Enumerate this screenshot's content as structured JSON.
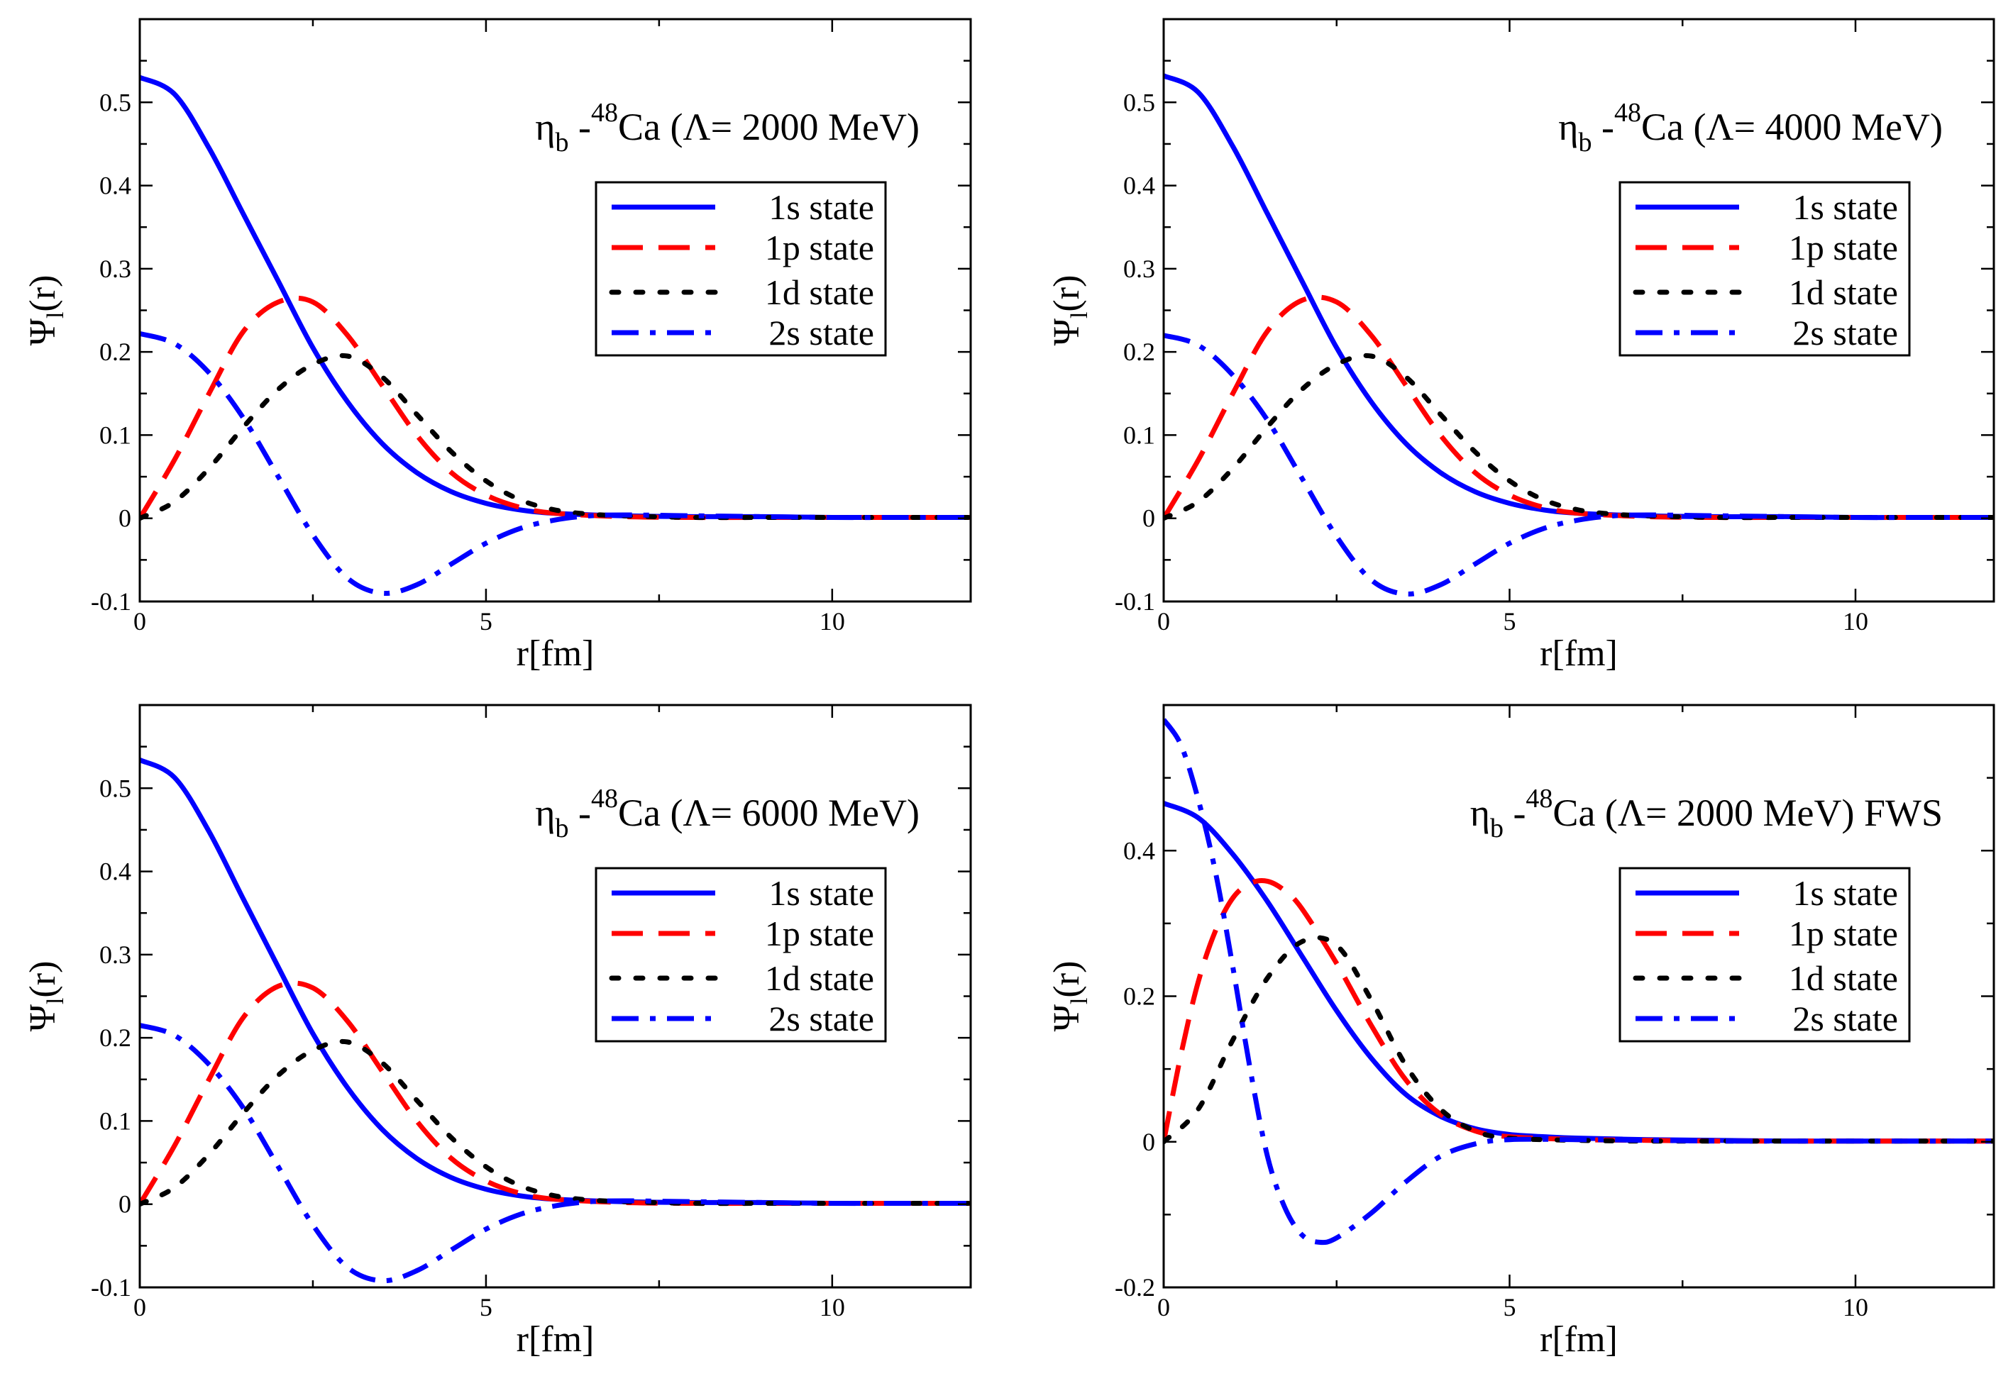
{
  "colors": {
    "s1": "#0000ff",
    "p1": "#ff0000",
    "d1": "#000000",
    "s2": "#0000ff"
  },
  "legend": [
    "1s state",
    "1p state",
    "1d state",
    "2s state"
  ],
  "xlabel": "r[fm]",
  "ylabel_main": "Ψ",
  "ylabel_sub": "l",
  "ylabel_tail": "(r)",
  "chart_data": [
    {
      "type": "line",
      "title_prefix": "η",
      "title_sub": "b",
      "title_sup": "48",
      "title_rest": "Ca (Λ= 2000 MeV)",
      "xlim": [
        0,
        12
      ],
      "ylim": [
        -0.1,
        0.6
      ],
      "xticks": [
        0,
        5,
        10
      ],
      "yticks": [
        -0.1,
        0,
        0.1,
        0.2,
        0.3,
        0.4,
        0.5
      ],
      "ytick_labels": [
        "-0.1",
        "0",
        "0.1",
        "0.2",
        "0.3",
        "0.4",
        "0.5"
      ],
      "series": [
        {
          "name": "1s state",
          "x": [
            0,
            0.5,
            1,
            1.5,
            2,
            2.5,
            3,
            3.5,
            4,
            4.5,
            5,
            5.5,
            6,
            7,
            8,
            9,
            10,
            11,
            12
          ],
          "y": [
            0.53,
            0.51,
            0.445,
            0.365,
            0.285,
            0.205,
            0.14,
            0.09,
            0.055,
            0.032,
            0.018,
            0.01,
            0.006,
            0.003,
            0.002,
            0.002,
            0.001,
            0.001,
            0.001
          ]
        },
        {
          "name": "1p state",
          "x": [
            0,
            0.5,
            1,
            1.5,
            2,
            2.5,
            3,
            3.5,
            4,
            4.5,
            5,
            5.5,
            6,
            7,
            8,
            9,
            10,
            11,
            12
          ],
          "y": [
            0,
            0.07,
            0.15,
            0.225,
            0.26,
            0.26,
            0.22,
            0.16,
            0.1,
            0.055,
            0.028,
            0.013,
            0.006,
            0.002,
            0.001,
            0.001,
            0.001,
            0.001,
            0.001
          ]
        },
        {
          "name": "1d state",
          "x": [
            0,
            0.5,
            1,
            1.5,
            2,
            2.5,
            3,
            3.5,
            4,
            4.5,
            5,
            5.5,
            6,
            6.5,
            7,
            8,
            9,
            10,
            11,
            12
          ],
          "y": [
            0,
            0.02,
            0.06,
            0.11,
            0.155,
            0.185,
            0.195,
            0.17,
            0.125,
            0.08,
            0.045,
            0.022,
            0.01,
            0.005,
            0.003,
            0.001,
            0.001,
            0.001,
            0.001,
            0.001
          ]
        },
        {
          "name": "2s state",
          "x": [
            0,
            0.5,
            1,
            1.5,
            2,
            2.5,
            3,
            3.5,
            4,
            4.5,
            5,
            5.5,
            6,
            6.5,
            7,
            8,
            9,
            10,
            11,
            12
          ],
          "y": [
            0.222,
            0.21,
            0.175,
            0.12,
            0.05,
            -0.02,
            -0.072,
            -0.09,
            -0.08,
            -0.055,
            -0.03,
            -0.012,
            -0.002,
            0.003,
            0.004,
            0.003,
            0.002,
            0.001,
            0.001,
            0.001
          ]
        }
      ]
    },
    {
      "type": "line",
      "title_prefix": "η",
      "title_sub": "b",
      "title_sup": "48",
      "title_rest": "Ca (Λ= 4000 MeV)",
      "xlim": [
        0,
        12
      ],
      "ylim": [
        -0.1,
        0.6
      ],
      "xticks": [
        0,
        5,
        10
      ],
      "yticks": [
        -0.1,
        0,
        0.1,
        0.2,
        0.3,
        0.4,
        0.5
      ],
      "ytick_labels": [
        "-0.1",
        "0",
        "0.1",
        "0.2",
        "0.3",
        "0.4",
        "0.5"
      ],
      "series": [
        {
          "name": "1s state",
          "x": [
            0,
            0.5,
            1,
            1.5,
            2,
            2.5,
            3,
            3.5,
            4,
            4.5,
            5,
            5.5,
            6,
            7,
            8,
            9,
            10,
            11,
            12
          ],
          "y": [
            0.532,
            0.512,
            0.447,
            0.366,
            0.285,
            0.205,
            0.14,
            0.09,
            0.055,
            0.032,
            0.018,
            0.01,
            0.006,
            0.003,
            0.002,
            0.002,
            0.001,
            0.001,
            0.001
          ]
        },
        {
          "name": "1p state",
          "x": [
            0,
            0.5,
            1,
            1.5,
            2,
            2.5,
            3,
            3.5,
            4,
            4.5,
            5,
            5.5,
            6,
            7,
            8,
            9,
            10,
            11,
            12
          ],
          "y": [
            0,
            0.07,
            0.15,
            0.225,
            0.262,
            0.26,
            0.22,
            0.16,
            0.1,
            0.055,
            0.028,
            0.013,
            0.006,
            0.002,
            0.001,
            0.001,
            0.001,
            0.001,
            0.001
          ]
        },
        {
          "name": "1d state",
          "x": [
            0,
            0.5,
            1,
            1.5,
            2,
            2.5,
            3,
            3.5,
            4,
            4.5,
            5,
            5.5,
            6,
            6.5,
            7,
            8,
            9,
            10,
            11,
            12
          ],
          "y": [
            0,
            0.02,
            0.06,
            0.11,
            0.155,
            0.185,
            0.195,
            0.17,
            0.125,
            0.08,
            0.045,
            0.022,
            0.01,
            0.005,
            0.003,
            0.001,
            0.001,
            0.001,
            0.001,
            0.001
          ]
        },
        {
          "name": "2s state",
          "x": [
            0,
            0.5,
            1,
            1.5,
            2,
            2.5,
            3,
            3.5,
            4,
            4.5,
            5,
            5.5,
            6,
            6.5,
            7,
            8,
            9,
            10,
            11,
            12
          ],
          "y": [
            0.22,
            0.208,
            0.172,
            0.118,
            0.048,
            -0.022,
            -0.074,
            -0.091,
            -0.08,
            -0.055,
            -0.03,
            -0.012,
            -0.002,
            0.003,
            0.004,
            0.003,
            0.002,
            0.001,
            0.001,
            0.001
          ]
        }
      ]
    },
    {
      "type": "line",
      "title_prefix": "η",
      "title_sub": "b",
      "title_sup": "48",
      "title_rest": "Ca (Λ= 6000 MeV)",
      "xlim": [
        0,
        12
      ],
      "ylim": [
        -0.1,
        0.6
      ],
      "xticks": [
        0,
        5,
        10
      ],
      "yticks": [
        -0.1,
        0,
        0.1,
        0.2,
        0.3,
        0.4,
        0.5
      ],
      "ytick_labels": [
        "-0.1",
        "0",
        "0.1",
        "0.2",
        "0.3",
        "0.4",
        "0.5"
      ],
      "series": [
        {
          "name": "1s state",
          "x": [
            0,
            0.5,
            1,
            1.5,
            2,
            2.5,
            3,
            3.5,
            4,
            4.5,
            5,
            5.5,
            6,
            7,
            8,
            9,
            10,
            11,
            12
          ],
          "y": [
            0.534,
            0.513,
            0.448,
            0.366,
            0.285,
            0.205,
            0.14,
            0.09,
            0.055,
            0.032,
            0.018,
            0.01,
            0.006,
            0.003,
            0.002,
            0.002,
            0.001,
            0.001,
            0.001
          ]
        },
        {
          "name": "1p state",
          "x": [
            0,
            0.5,
            1,
            1.5,
            2,
            2.5,
            3,
            3.5,
            4,
            4.5,
            5,
            5.5,
            6,
            7,
            8,
            9,
            10,
            11,
            12
          ],
          "y": [
            0,
            0.07,
            0.15,
            0.225,
            0.262,
            0.26,
            0.22,
            0.16,
            0.1,
            0.055,
            0.028,
            0.013,
            0.006,
            0.002,
            0.001,
            0.001,
            0.001,
            0.001,
            0.001
          ]
        },
        {
          "name": "1d state",
          "x": [
            0,
            0.5,
            1,
            1.5,
            2,
            2.5,
            3,
            3.5,
            4,
            4.5,
            5,
            5.5,
            6,
            6.5,
            7,
            8,
            9,
            10,
            11,
            12
          ],
          "y": [
            0,
            0.02,
            0.06,
            0.11,
            0.155,
            0.185,
            0.195,
            0.17,
            0.125,
            0.08,
            0.045,
            0.022,
            0.01,
            0.005,
            0.003,
            0.001,
            0.001,
            0.001,
            0.001,
            0.001
          ]
        },
        {
          "name": "2s state",
          "x": [
            0,
            0.5,
            1,
            1.5,
            2,
            2.5,
            3,
            3.5,
            4,
            4.5,
            5,
            5.5,
            6,
            6.5,
            7,
            8,
            9,
            10,
            11,
            12
          ],
          "y": [
            0.215,
            0.203,
            0.168,
            0.115,
            0.045,
            -0.025,
            -0.076,
            -0.092,
            -0.08,
            -0.055,
            -0.03,
            -0.012,
            -0.002,
            0.003,
            0.004,
            0.003,
            0.002,
            0.001,
            0.001,
            0.001
          ]
        }
      ]
    },
    {
      "type": "line",
      "title_prefix": "η",
      "title_sub": "b",
      "title_sup": "48",
      "title_rest": "Ca (Λ= 2000 MeV) FWS",
      "xlim": [
        0,
        12
      ],
      "ylim": [
        -0.2,
        0.6
      ],
      "xticks": [
        0,
        5,
        10
      ],
      "yticks": [
        -0.2,
        0,
        0.2,
        0.4
      ],
      "ytick_labels": [
        "-0.2",
        "0",
        "0.2",
        "0.4"
      ],
      "series": [
        {
          "name": "1s state",
          "x": [
            0,
            0.5,
            1,
            1.5,
            2,
            2.5,
            3,
            3.5,
            4,
            4.5,
            5,
            5.5,
            6,
            7,
            8,
            9,
            10,
            11,
            12
          ],
          "y": [
            0.465,
            0.445,
            0.395,
            0.33,
            0.255,
            0.18,
            0.115,
            0.065,
            0.035,
            0.018,
            0.01,
            0.007,
            0.005,
            0.003,
            0.002,
            0.001,
            0.001,
            0.001,
            0.001
          ]
        },
        {
          "name": "1p state",
          "x": [
            0,
            0.25,
            0.5,
            0.75,
            1,
            1.25,
            1.5,
            1.75,
            2,
            2.5,
            3,
            3.5,
            4,
            4.5,
            5,
            6,
            7,
            8,
            9,
            10,
            11,
            12
          ],
          "y": [
            0,
            0.12,
            0.22,
            0.29,
            0.335,
            0.355,
            0.358,
            0.345,
            0.32,
            0.245,
            0.16,
            0.085,
            0.038,
            0.015,
            0.007,
            0.003,
            0.002,
            0.001,
            0.001,
            0.001,
            0.001,
            0.001
          ]
        },
        {
          "name": "1d state",
          "x": [
            0,
            0.5,
            1,
            1.5,
            2,
            2.5,
            3,
            3.5,
            4,
            4.5,
            5,
            6,
            7,
            8,
            9,
            10,
            11,
            12
          ],
          "y": [
            0,
            0.045,
            0.14,
            0.225,
            0.275,
            0.27,
            0.195,
            0.105,
            0.045,
            0.015,
            0.005,
            0.002,
            0.001,
            0.001,
            0.001,
            0.001,
            0.001,
            0.001
          ]
        },
        {
          "name": "2s state",
          "x": [
            0,
            0.25,
            0.5,
            0.75,
            1,
            1.25,
            1.5,
            1.75,
            2,
            2.25,
            2.5,
            3,
            3.5,
            4,
            4.5,
            5,
            6,
            7,
            8,
            9,
            10,
            11,
            12
          ],
          "y": [
            0.58,
            0.545,
            0.47,
            0.37,
            0.24,
            0.1,
            -0.02,
            -0.09,
            -0.128,
            -0.138,
            -0.132,
            -0.098,
            -0.055,
            -0.02,
            -0.003,
            0.003,
            0.003,
            0.002,
            0.001,
            0.001,
            0.001,
            0.001,
            0.001
          ]
        }
      ]
    }
  ]
}
